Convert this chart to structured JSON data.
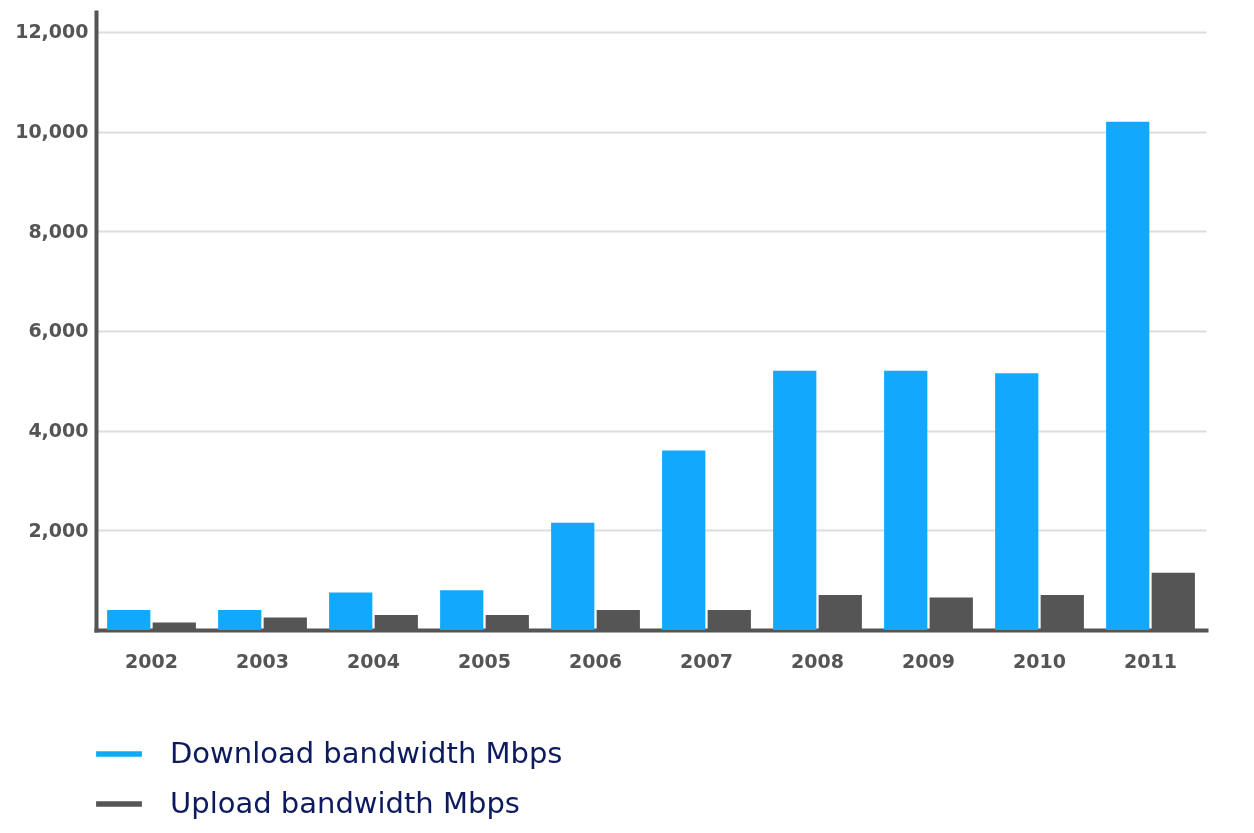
{
  "chart_data": {
    "type": "bar",
    "categories": [
      "2002",
      "2003",
      "2004",
      "2005",
      "2006",
      "2007",
      "2008",
      "2009",
      "2010",
      "2011"
    ],
    "series": [
      {
        "name": "Download bandwidth Mbps",
        "color": "#12a9fd",
        "values": [
          400,
          400,
          750,
          800,
          2150,
          3600,
          5200,
          5200,
          5150,
          10200
        ]
      },
      {
        "name": "Upload bandwidth Mbps",
        "color": "#555555",
        "values": [
          150,
          250,
          300,
          300,
          400,
          400,
          700,
          650,
          700,
          1150
        ]
      }
    ],
    "ylim": [
      0,
      12400
    ],
    "yticks": [
      {
        "value": 2000,
        "label": "2,000"
      },
      {
        "value": 4000,
        "label": "4,000"
      },
      {
        "value": 6000,
        "label": "6,000"
      },
      {
        "value": 8000,
        "label": "8,000"
      },
      {
        "value": 10000,
        "label": "10,000"
      },
      {
        "value": 12000,
        "label": "12,000"
      }
    ],
    "grid": "y",
    "legend": "bottom left"
  }
}
